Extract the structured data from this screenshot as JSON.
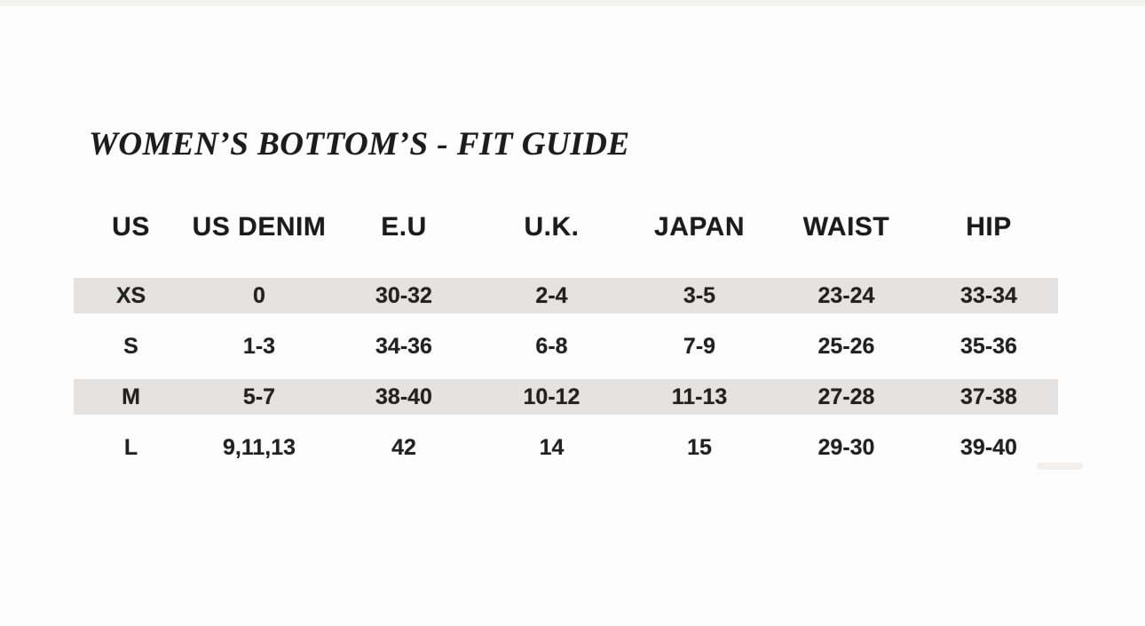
{
  "page": {
    "title": "WOMEN’S BOTTOM’S - FIT GUIDE"
  },
  "chart_data": {
    "type": "table",
    "title": "WOMEN’S BOTTOM’S - FIT GUIDE",
    "columns": [
      "US",
      "US DENIM",
      "E.U",
      "U.K.",
      "JAPAN",
      "WAIST",
      "HIP"
    ],
    "rows": [
      {
        "shaded": true,
        "cells": [
          "XS",
          "0",
          "30-32",
          "2-4",
          "3-5",
          "23-24",
          "33-34"
        ]
      },
      {
        "shaded": false,
        "cells": [
          "S",
          "1-3",
          "34-36",
          "6-8",
          "7-9",
          "25-26",
          "35-36"
        ]
      },
      {
        "shaded": true,
        "cells": [
          "M",
          "5-7",
          "38-40",
          "10-12",
          "11-13",
          "27-28",
          "37-38"
        ]
      },
      {
        "shaded": false,
        "cells": [
          "L",
          "9,11,13",
          "42",
          "14",
          "15",
          "29-30",
          "39-40"
        ]
      }
    ],
    "layout_hints": {
      "zebra_striping": "rows XS and M shaded",
      "alignment": "center",
      "grid": "off"
    }
  },
  "colors": {
    "row_shade": "#e4e3e1",
    "text": "#1c1c1c",
    "page_background": "#fdfdfd"
  }
}
